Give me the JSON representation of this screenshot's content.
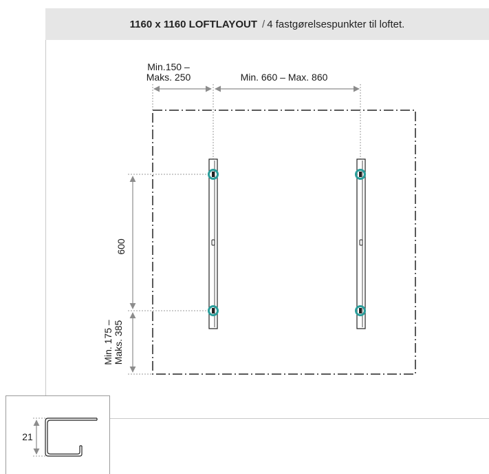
{
  "header": {
    "title_bold": "1160 x 1160 LOFTLAYOUT",
    "separator": "/",
    "subtitle": "4 fastgørelsespunkter til loftet."
  },
  "dimensions": {
    "left_offset_line1": "Min.150 –",
    "left_offset_line2": "Maks. 250",
    "rail_spacing": "Min. 660 – Max. 860",
    "vertical_spacing": "600",
    "bottom_offset_line1": "Min. 175 –",
    "bottom_offset_line2": "Maks. 385"
  },
  "profile_inset": {
    "height_label": "21"
  },
  "colors": {
    "fastening_point": "#2a9d9a",
    "arrow": "#8c8c8c",
    "outline": "#222222",
    "header_bg": "#e6e6e6"
  }
}
